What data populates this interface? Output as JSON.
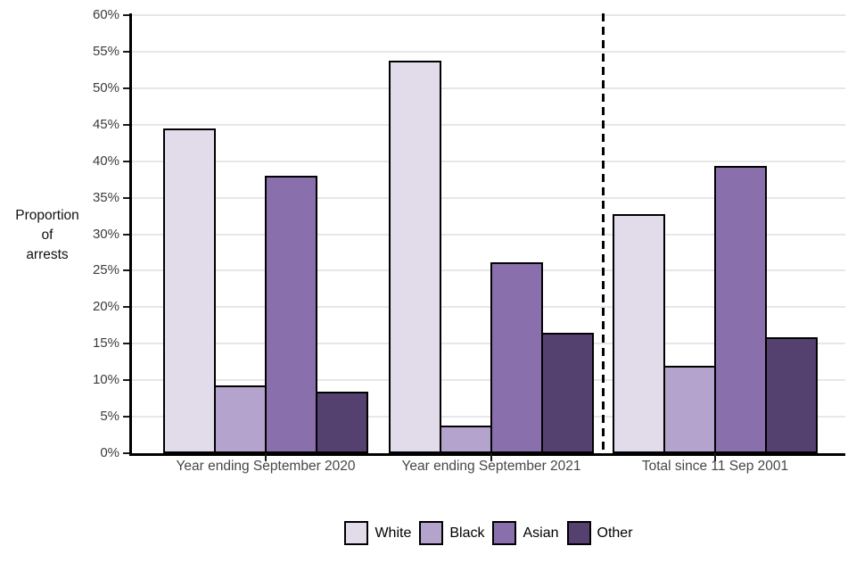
{
  "chart_data": {
    "type": "bar",
    "title": "",
    "ylabel_lines": [
      "Proportion",
      "of",
      "arrests"
    ],
    "categories": [
      "Year ending September 2020",
      "Year ending September 2021",
      "Total since 11 Sep 2001"
    ],
    "series": [
      {
        "name": "White",
        "color": "#e2dcea",
        "values": [
          44.5,
          53.8,
          32.7
        ]
      },
      {
        "name": "Black",
        "color": "#b4a3cd",
        "values": [
          9.3,
          3.8,
          12.0
        ]
      },
      {
        "name": "Asian",
        "color": "#8970ac",
        "values": [
          38.0,
          26.1,
          39.4
        ]
      },
      {
        "name": "Other",
        "color": "#544170",
        "values": [
          8.4,
          16.5,
          15.9
        ]
      }
    ],
    "ylim": [
      0,
      60
    ],
    "ytick_step": 5,
    "ytick_suffix": "%",
    "grid": true,
    "legend_position": "bottom",
    "separator_after_category": 1
  }
}
